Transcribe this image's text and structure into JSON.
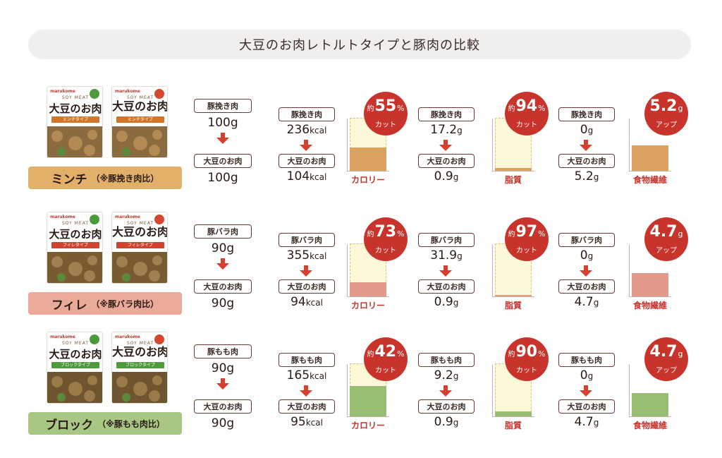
{
  "title": "大豆のお肉レトルトタイプと豚肉の比較",
  "colors": {
    "arrow": "#d6402e",
    "badge": "#c8342c",
    "tag_border": "#6a3a36",
    "before_fill": "#fdf8d8",
    "before_border": "#d9c27a"
  },
  "rows": [
    {
      "id": "minchi",
      "product": {
        "brand": "marukome",
        "soy": "SOY MEAT",
        "name": "大豆のお肉",
        "type_label": "ミンチタイプ",
        "type_color": "#d3762a",
        "food_color": "#8a6a3e",
        "food_color2": "#b48a54"
      },
      "label": {
        "main": "ミンチ",
        "sub": "（※豚挽き肉比）",
        "color": "#e3b06a"
      },
      "weight": {
        "pork_tag": "豚挽き肉",
        "pork_value": "100g",
        "soy_tag": "大豆のお肉",
        "soy_value": "100g"
      },
      "calorie": {
        "pork_tag": "豚挽き肉",
        "pork_num": "236",
        "pork_unit": "kcal",
        "soy_tag": "大豆のお肉",
        "soy_num": "104",
        "soy_unit": "kcal",
        "prefix": "約",
        "badge_num": "55",
        "badge_unit": "%",
        "badge_label": "カット",
        "chart_label": "カロリー",
        "before": 236,
        "after": 104,
        "fill_color": "#d9a25e"
      },
      "fat": {
        "pork_tag": "豚挽き肉",
        "pork_num": "17.2",
        "pork_unit": "g",
        "soy_tag": "大豆のお肉",
        "soy_num": "0.9",
        "soy_unit": "g",
        "prefix": "約",
        "badge_num": "94",
        "badge_unit": "%",
        "badge_label": "カット",
        "chart_label": "脂質",
        "before": 17.2,
        "after": 0.9,
        "fill_color": "#d9a25e"
      },
      "fiber": {
        "pork_tag": "豚挽き肉",
        "pork_num": "0",
        "pork_unit": "g",
        "soy_tag": "大豆のお肉",
        "soy_num": "5.2",
        "soy_unit": "g",
        "badge_num": "5.2",
        "badge_unit": "g",
        "badge_label": "アップ",
        "chart_label": "食物繊維",
        "value": 5.2,
        "fill_color": "#d9a25e"
      }
    },
    {
      "id": "filet",
      "product": {
        "brand": "marukome",
        "soy": "SOY MEAT",
        "name": "大豆のお肉",
        "type_label": "フィレタイプ",
        "type_color": "#d0432f",
        "food_color": "#7a5a30",
        "food_color2": "#a08050"
      },
      "label": {
        "main": "フィレ",
        "sub": "（※豚バラ肉比）",
        "color": "#eaaa99"
      },
      "weight": {
        "pork_tag": "豚バラ肉",
        "pork_value": "90g",
        "soy_tag": "大豆のお肉",
        "soy_value": "90g"
      },
      "calorie": {
        "pork_tag": "豚バラ肉",
        "pork_num": "355",
        "pork_unit": "kcal",
        "soy_tag": "大豆のお肉",
        "soy_num": "94",
        "soy_unit": "kcal",
        "prefix": "約",
        "badge_num": "73",
        "badge_unit": "%",
        "badge_label": "カット",
        "chart_label": "カロリー",
        "before": 355,
        "after": 94,
        "fill_color": "#e5998a"
      },
      "fat": {
        "pork_tag": "豚バラ肉",
        "pork_num": "31.9",
        "pork_unit": "g",
        "soy_tag": "大豆のお肉",
        "soy_num": "0.9",
        "soy_unit": "g",
        "prefix": "約",
        "badge_num": "97",
        "badge_unit": "%",
        "badge_label": "カット",
        "chart_label": "脂質",
        "before": 31.9,
        "after": 0.9,
        "fill_color": "#e5998a"
      },
      "fiber": {
        "pork_tag": "豚バラ肉",
        "pork_num": "0",
        "pork_unit": "g",
        "soy_tag": "大豆のお肉",
        "soy_num": "4.7",
        "soy_unit": "g",
        "badge_num": "4.7",
        "badge_unit": "g",
        "badge_label": "アップ",
        "chart_label": "食物繊維",
        "value": 4.7,
        "fill_color": "#e5998a"
      }
    },
    {
      "id": "block",
      "product": {
        "brand": "marukome",
        "soy": "SOY MEAT",
        "name": "大豆のお肉",
        "type_label": "ブロックタイプ",
        "type_color": "#4f9a3c",
        "food_color": "#6e5530",
        "food_color2": "#9a7a48"
      },
      "label": {
        "main": "ブロック",
        "sub": "（※豚もも肉比）",
        "color": "#a8c784"
      },
      "weight": {
        "pork_tag": "豚もも肉",
        "pork_value": "90g",
        "soy_tag": "大豆のお肉",
        "soy_value": "90g"
      },
      "calorie": {
        "pork_tag": "豚もも肉",
        "pork_num": "165",
        "pork_unit": "kcal",
        "soy_tag": "大豆のお肉",
        "soy_num": "95",
        "soy_unit": "kcal",
        "prefix": "約",
        "badge_num": "42",
        "badge_unit": "%",
        "badge_label": "カット",
        "chart_label": "カロリー",
        "before": 165,
        "after": 95,
        "fill_color": "#99bd73"
      },
      "fat": {
        "pork_tag": "豚もも肉",
        "pork_num": "9.2",
        "pork_unit": "g",
        "soy_tag": "大豆のお肉",
        "soy_num": "0.9",
        "soy_unit": "g",
        "prefix": "約",
        "badge_num": "90",
        "badge_unit": "%",
        "badge_label": "カット",
        "chart_label": "脂質",
        "before": 9.2,
        "after": 0.9,
        "fill_color": "#99bd73"
      },
      "fiber": {
        "pork_tag": "豚もも肉",
        "pork_num": "0",
        "pork_unit": "g",
        "soy_tag": "大豆のお肉",
        "soy_num": "4.7",
        "soy_unit": "g",
        "badge_num": "4.7",
        "badge_unit": "g",
        "badge_label": "アップ",
        "chart_label": "食物繊維",
        "value": 4.7,
        "fill_color": "#99bd73"
      }
    }
  ],
  "chart_data": [
    {
      "type": "bar",
      "categories": [
        "豚挽き肉",
        "大豆のお肉"
      ],
      "values": [
        236,
        104
      ],
      "title": "カロリー"
    },
    {
      "type": "bar",
      "categories": [
        "豚挽き肉",
        "大豆のお肉"
      ],
      "values": [
        17.2,
        0.9
      ],
      "title": "脂質"
    },
    {
      "type": "bar",
      "categories": [
        "豚挽き肉",
        "大豆のお肉"
      ],
      "values": [
        0,
        5.2
      ],
      "title": "食物繊維"
    },
    {
      "type": "bar",
      "categories": [
        "豚バラ肉",
        "大豆のお肉"
      ],
      "values": [
        355,
        94
      ],
      "title": "カロリー"
    },
    {
      "type": "bar",
      "categories": [
        "豚バラ肉",
        "大豆のお肉"
      ],
      "values": [
        31.9,
        0.9
      ],
      "title": "脂質"
    },
    {
      "type": "bar",
      "categories": [
        "豚バラ肉",
        "大豆のお肉"
      ],
      "values": [
        0,
        4.7
      ],
      "title": "食物繊維"
    },
    {
      "type": "bar",
      "categories": [
        "豚もも肉",
        "大豆のお肉"
      ],
      "values": [
        165,
        95
      ],
      "title": "カロリー"
    },
    {
      "type": "bar",
      "categories": [
        "豚もも肉",
        "大豆のお肉"
      ],
      "values": [
        9.2,
        0.9
      ],
      "title": "脂質"
    },
    {
      "type": "bar",
      "categories": [
        "豚もも肉",
        "大豆のお肉"
      ],
      "values": [
        0,
        4.7
      ],
      "title": "食物繊維"
    }
  ]
}
